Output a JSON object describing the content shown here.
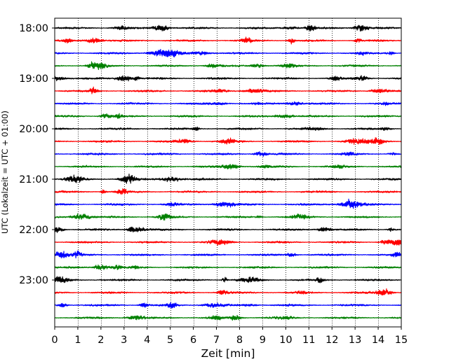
{
  "chart_data": {
    "type": "line",
    "title": "",
    "xlabel": "Zeit  [min]",
    "ylabel": "UTC (Lokalzeit = UTC + 01:00)",
    "xlim": [
      0,
      15
    ],
    "x_ticks": [
      "0",
      "1",
      "2",
      "3",
      "4",
      "5",
      "6",
      "7",
      "8",
      "9",
      "10",
      "11",
      "12",
      "13",
      "14",
      "15"
    ],
    "y_ticks": [
      "18:00",
      "19:00",
      "20:00",
      "21:00",
      "22:00",
      "23:00"
    ],
    "grid": "vertical dotted",
    "trace_interval_min": 15,
    "trace_colors": [
      "#000000",
      "#ff0000",
      "#0000ff",
      "#008000"
    ],
    "series": [
      {
        "start": "18:00",
        "color": "#000000"
      },
      {
        "start": "18:15",
        "color": "#ff0000"
      },
      {
        "start": "18:30",
        "color": "#0000ff"
      },
      {
        "start": "18:45",
        "color": "#008000"
      },
      {
        "start": "19:00",
        "color": "#000000"
      },
      {
        "start": "19:15",
        "color": "#ff0000"
      },
      {
        "start": "19:30",
        "color": "#0000ff"
      },
      {
        "start": "19:45",
        "color": "#008000"
      },
      {
        "start": "20:00",
        "color": "#000000"
      },
      {
        "start": "20:15",
        "color": "#ff0000"
      },
      {
        "start": "20:30",
        "color": "#0000ff"
      },
      {
        "start": "20:45",
        "color": "#008000"
      },
      {
        "start": "21:00",
        "color": "#000000"
      },
      {
        "start": "21:15",
        "color": "#ff0000"
      },
      {
        "start": "21:30",
        "color": "#0000ff"
      },
      {
        "start": "21:45",
        "color": "#008000"
      },
      {
        "start": "22:00",
        "color": "#000000"
      },
      {
        "start": "22:15",
        "color": "#ff0000"
      },
      {
        "start": "22:30",
        "color": "#0000ff"
      },
      {
        "start": "22:45",
        "color": "#008000"
      },
      {
        "start": "23:00",
        "color": "#000000"
      },
      {
        "start": "23:15",
        "color": "#ff0000"
      },
      {
        "start": "23:30",
        "color": "#0000ff"
      },
      {
        "start": "23:45",
        "color": "#008000"
      }
    ]
  }
}
